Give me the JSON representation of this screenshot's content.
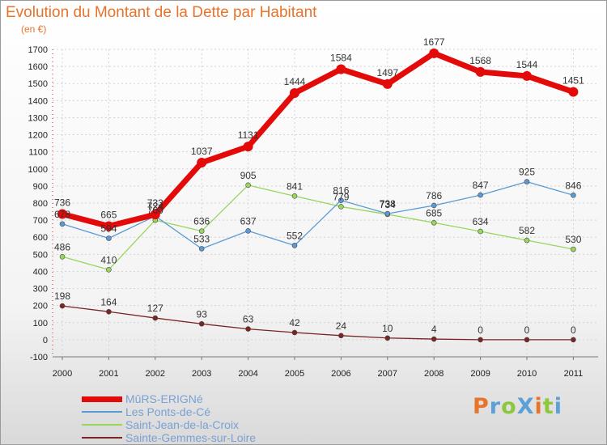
{
  "header": {
    "title": "Evolution du Montant de la Dette par Habitant",
    "subtitle": "(en €)"
  },
  "brand": {
    "text": "ProXiti",
    "colors": [
      "#e8732a",
      "#5ba0d6",
      "#8dc63f",
      "#5ba0d6",
      "#e8732a",
      "#8dc63f",
      "#5ba0d6"
    ]
  },
  "chart_data": {
    "type": "line",
    "title": "Evolution du Montant de la Dette par Habitant",
    "subtitle": "(en €)",
    "xlabel": "",
    "ylabel": "",
    "x": [
      "2000",
      "2001",
      "2002",
      "2003",
      "2004",
      "2005",
      "2006",
      "2007",
      "2008",
      "2009",
      "2010",
      "2011"
    ],
    "ylim": [
      -100,
      1700
    ],
    "yticks": [
      -100,
      0,
      100,
      200,
      300,
      400,
      500,
      600,
      700,
      800,
      900,
      1000,
      1100,
      1200,
      1300,
      1400,
      1500,
      1600,
      1700
    ],
    "grid": true,
    "legend_position": "bottom-left",
    "series": [
      {
        "name": "MûRS-ERIGNé",
        "color": "#e30a0a",
        "width": 7,
        "marker_radius": 6,
        "values": [
          736,
          665,
          733,
          1037,
          1131,
          1444,
          1584,
          1497,
          1677,
          1568,
          1544,
          1451
        ]
      },
      {
        "name": "Les Ponts-de-Cé",
        "color": "#5b9bd5",
        "width": 1.3,
        "marker_radius": 3,
        "values": [
          678,
          594,
          724,
          533,
          637,
          552,
          816,
          738,
          786,
          847,
          925,
          846
        ]
      },
      {
        "name": "Saint-Jean-de-la-Croix",
        "color": "#98d65e",
        "width": 1.3,
        "marker_radius": 3,
        "values": [
          486,
          410,
          700,
          636,
          905,
          841,
          779,
          734,
          685,
          634,
          582,
          530
        ]
      },
      {
        "name": "Sainte-Gemmes-sur-Loire",
        "color": "#7a2424",
        "width": 1.3,
        "marker_radius": 3,
        "values": [
          198,
          164,
          127,
          93,
          63,
          42,
          24,
          10,
          4,
          0,
          0,
          0
        ]
      }
    ]
  }
}
